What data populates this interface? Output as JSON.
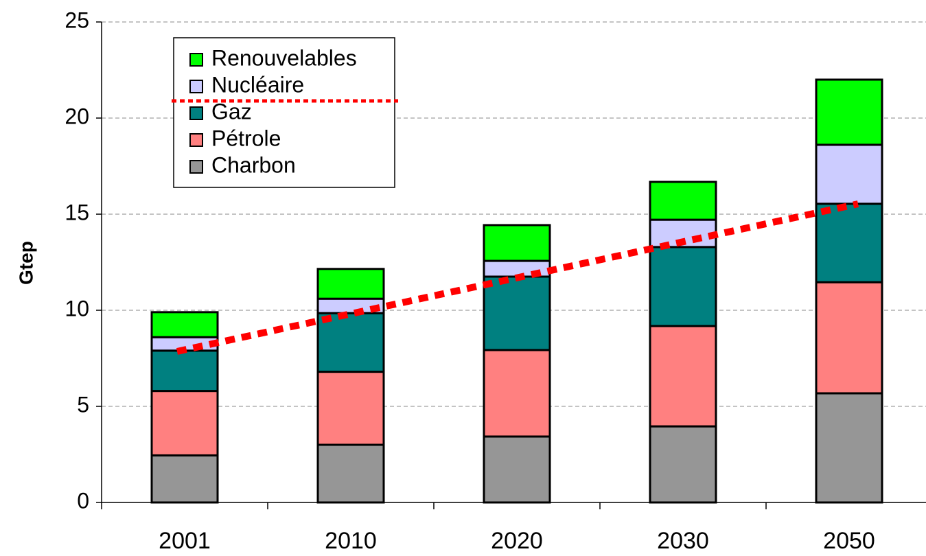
{
  "chart_data": {
    "type": "stacked_bar",
    "y_label": "Gtep",
    "categories": [
      "2001",
      "2010",
      "2020",
      "2030",
      "2050"
    ],
    "series": [
      {
        "name": "Charbon",
        "color": "#969696",
        "values": [
          2.45,
          3.0,
          3.43,
          3.96,
          5.68
        ]
      },
      {
        "name": "Pétrole",
        "color": "#ff8080",
        "values": [
          3.35,
          3.8,
          4.5,
          5.22,
          5.78
        ]
      },
      {
        "name": "Gaz",
        "color": "#008080",
        "values": [
          2.1,
          3.05,
          3.82,
          4.11,
          4.08
        ]
      },
      {
        "name": "Nucléaire",
        "color": "#ccccff",
        "values": [
          0.7,
          0.75,
          0.82,
          1.42,
          3.07
        ]
      },
      {
        "name": "Renouvelables",
        "color": "#00ff00",
        "values": [
          1.3,
          1.55,
          1.86,
          1.97,
          3.39
        ]
      }
    ],
    "ylim": [
      0,
      25
    ],
    "yticks": [
      0,
      5,
      10,
      15,
      20,
      25
    ],
    "grid": true,
    "legend": "upper left"
  }
}
